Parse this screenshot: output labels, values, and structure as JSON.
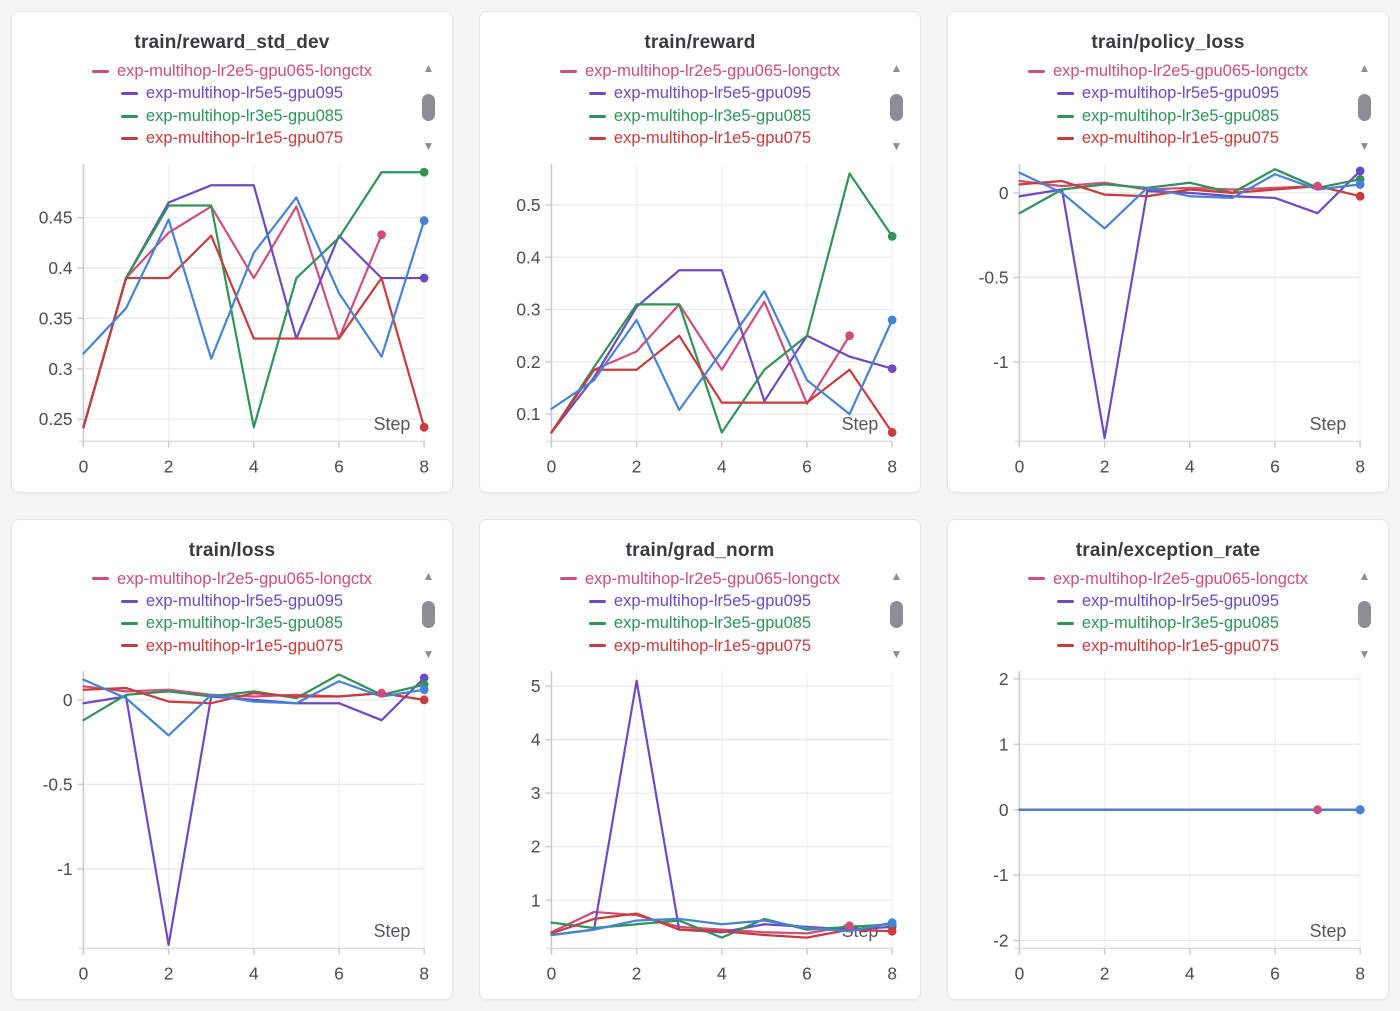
{
  "page": {
    "background": "#f4f4f5",
    "layout": "3x2-grid-of-metric-panels"
  },
  "icons": {
    "scroll_up": "▲",
    "scroll_down": "▼"
  },
  "runs": [
    {
      "label": "exp-multihop-lr2e5-gpu065-longctx",
      "color": "#d14d7e"
    },
    {
      "label": "exp-multihop-lr5e5-gpu095",
      "color": "#6d49c6"
    },
    {
      "label": "exp-multihop-lr3e5-gpu085",
      "color": "#2f9457"
    },
    {
      "label": "exp-multihop-lr1e5-gpu075",
      "color": "#cb3b3b"
    },
    {
      "label": "",
      "color": "#4583d9"
    }
  ],
  "legend": {
    "visible_run_indexes": [
      0,
      1,
      2,
      3
    ],
    "position": "top-center",
    "scrollable": true
  },
  "style": {
    "title_color": "#3a3a40",
    "tick_color": "#4b4b52",
    "step_label_color": "#56565e",
    "gridline_color": "#e8e8ec",
    "axis_color": "#c9c9cf"
  },
  "chart_data": [
    {
      "type": "line",
      "title": "train/reward_std_dev",
      "xlabel": "Step",
      "x": [
        0,
        1,
        2,
        3,
        4,
        5,
        6,
        7,
        8
      ],
      "xticks": [
        0,
        2,
        4,
        6,
        8
      ],
      "yticks": [
        0.25,
        0.3,
        0.35,
        0.4,
        0.45
      ],
      "ylim": [
        0.228,
        0.503
      ],
      "grid": true,
      "series": [
        {
          "run": 0,
          "values": [
            0.242,
            0.39,
            0.435,
            0.461,
            0.39,
            0.461,
            0.33,
            0.433
          ]
        },
        {
          "run": 1,
          "values": [
            0.242,
            0.39,
            0.465,
            0.482,
            0.482,
            0.33,
            0.432,
            0.39,
            0.39
          ]
        },
        {
          "run": 2,
          "values": [
            0.242,
            0.39,
            0.462,
            0.462,
            0.242,
            0.39,
            0.43,
            0.495,
            0.495
          ]
        },
        {
          "run": 3,
          "values": [
            0.242,
            0.39,
            0.39,
            0.432,
            0.33,
            0.33,
            0.33,
            0.39,
            0.242
          ]
        },
        {
          "run": 4,
          "values": [
            0.315,
            0.36,
            0.448,
            0.31,
            0.415,
            0.47,
            0.375,
            0.312,
            0.447
          ]
        }
      ]
    },
    {
      "type": "line",
      "title": "train/reward",
      "xlabel": "Step",
      "x": [
        0,
        1,
        2,
        3,
        4,
        5,
        6,
        7,
        8
      ],
      "xticks": [
        0,
        2,
        4,
        6,
        8
      ],
      "yticks": [
        0.1,
        0.2,
        0.3,
        0.4,
        0.5
      ],
      "ylim": [
        0.048,
        0.578
      ],
      "grid": true,
      "series": [
        {
          "run": 0,
          "values": [
            0.065,
            0.185,
            0.22,
            0.31,
            0.185,
            0.315,
            0.12,
            0.25
          ]
        },
        {
          "run": 1,
          "values": [
            0.065,
            0.17,
            0.305,
            0.375,
            0.375,
            0.125,
            0.25,
            0.21,
            0.187
          ]
        },
        {
          "run": 2,
          "values": [
            0.065,
            0.19,
            0.31,
            0.31,
            0.065,
            0.185,
            0.25,
            0.56,
            0.44
          ]
        },
        {
          "run": 3,
          "values": [
            0.065,
            0.185,
            0.185,
            0.25,
            0.122,
            0.122,
            0.122,
            0.185,
            0.065
          ]
        },
        {
          "run": 4,
          "values": [
            0.11,
            0.165,
            0.28,
            0.108,
            0.22,
            0.335,
            0.165,
            0.1,
            0.28
          ]
        }
      ]
    },
    {
      "type": "line",
      "title": "train/policy_loss",
      "xlabel": "Step",
      "x": [
        0,
        1,
        2,
        3,
        4,
        5,
        6,
        7,
        8
      ],
      "xticks": [
        0,
        2,
        4,
        6,
        8
      ],
      "yticks": [
        0,
        -0.5,
        -1
      ],
      "ylim": [
        -1.47,
        0.17
      ],
      "grid": true,
      "series": [
        {
          "run": 0,
          "values": [
            0.07,
            0.04,
            0.06,
            0.02,
            0.03,
            0.02,
            0.03,
            0.04
          ]
        },
        {
          "run": 1,
          "values": [
            -0.02,
            0.02,
            -1.45,
            0.01,
            0.0,
            -0.02,
            -0.03,
            -0.12,
            0.13
          ]
        },
        {
          "run": 2,
          "values": [
            -0.12,
            0.02,
            0.05,
            0.03,
            0.06,
            0.0,
            0.14,
            0.03,
            0.08
          ]
        },
        {
          "run": 3,
          "values": [
            0.05,
            0.07,
            -0.01,
            -0.02,
            0.02,
            0.0,
            0.02,
            0.04,
            -0.02
          ]
        },
        {
          "run": 4,
          "values": [
            0.12,
            0.0,
            -0.21,
            0.03,
            -0.02,
            -0.03,
            0.11,
            0.02,
            0.05
          ]
        }
      ]
    },
    {
      "type": "line",
      "title": "train/loss",
      "xlabel": "Step",
      "x": [
        0,
        1,
        2,
        3,
        4,
        5,
        6,
        7,
        8
      ],
      "xticks": [
        0,
        2,
        4,
        6,
        8
      ],
      "yticks": [
        0,
        -0.5,
        -1
      ],
      "ylim": [
        -1.47,
        0.17
      ],
      "grid": true,
      "series": [
        {
          "run": 0,
          "values": [
            0.08,
            0.05,
            0.06,
            0.03,
            0.02,
            0.03,
            0.02,
            0.04
          ]
        },
        {
          "run": 1,
          "values": [
            -0.02,
            0.02,
            -1.45,
            0.02,
            0.0,
            -0.02,
            -0.02,
            -0.12,
            0.13
          ]
        },
        {
          "run": 2,
          "values": [
            -0.12,
            0.03,
            0.05,
            0.02,
            0.05,
            0.01,
            0.15,
            0.03,
            0.09
          ]
        },
        {
          "run": 3,
          "values": [
            0.06,
            0.07,
            -0.01,
            -0.02,
            0.04,
            0.02,
            0.02,
            0.04,
            0.0
          ]
        },
        {
          "run": 4,
          "values": [
            0.12,
            0.01,
            -0.21,
            0.03,
            -0.01,
            -0.02,
            0.11,
            0.02,
            0.06
          ]
        }
      ]
    },
    {
      "type": "line",
      "title": "train/grad_norm",
      "xlabel": "Step",
      "x": [
        0,
        1,
        2,
        3,
        4,
        5,
        6,
        7,
        8
      ],
      "xticks": [
        0,
        2,
        4,
        6,
        8
      ],
      "yticks": [
        1,
        2,
        3,
        4,
        5
      ],
      "ylim": [
        0.1,
        5.28
      ],
      "grid": true,
      "series": [
        {
          "run": 0,
          "values": [
            0.4,
            0.78,
            0.72,
            0.5,
            0.45,
            0.4,
            0.38,
            0.52
          ]
        },
        {
          "run": 1,
          "values": [
            0.35,
            0.45,
            5.1,
            0.45,
            0.4,
            0.55,
            0.5,
            0.45,
            0.5
          ]
        },
        {
          "run": 2,
          "values": [
            0.58,
            0.48,
            0.55,
            0.62,
            0.3,
            0.65,
            0.45,
            0.5,
            0.55
          ]
        },
        {
          "run": 3,
          "values": [
            0.38,
            0.65,
            0.75,
            0.45,
            0.42,
            0.35,
            0.3,
            0.45,
            0.42
          ]
        },
        {
          "run": 4,
          "values": [
            0.35,
            0.45,
            0.62,
            0.65,
            0.55,
            0.62,
            0.48,
            0.42,
            0.58
          ]
        }
      ]
    },
    {
      "type": "line",
      "title": "train/exception_rate",
      "xlabel": "Step",
      "x": [
        0,
        1,
        2,
        3,
        4,
        5,
        6,
        7,
        8
      ],
      "xticks": [
        0,
        2,
        4,
        6,
        8
      ],
      "yticks": [
        -2,
        -1,
        0,
        1,
        2
      ],
      "ylim": [
        -2.12,
        2.12
      ],
      "grid": true,
      "series": [
        {
          "run": 0,
          "values": [
            0,
            0,
            0,
            0,
            0,
            0,
            0,
            0
          ]
        },
        {
          "run": 1,
          "values": [
            0,
            0,
            0,
            0,
            0,
            0,
            0,
            0,
            0
          ]
        },
        {
          "run": 2,
          "values": [
            0,
            0,
            0,
            0,
            0,
            0,
            0,
            0,
            0
          ]
        },
        {
          "run": 3,
          "values": [
            0,
            0,
            0,
            0,
            0,
            0,
            0,
            0,
            0
          ]
        },
        {
          "run": 4,
          "values": [
            0,
            0,
            0,
            0,
            0,
            0,
            0,
            0,
            0
          ]
        }
      ]
    }
  ]
}
